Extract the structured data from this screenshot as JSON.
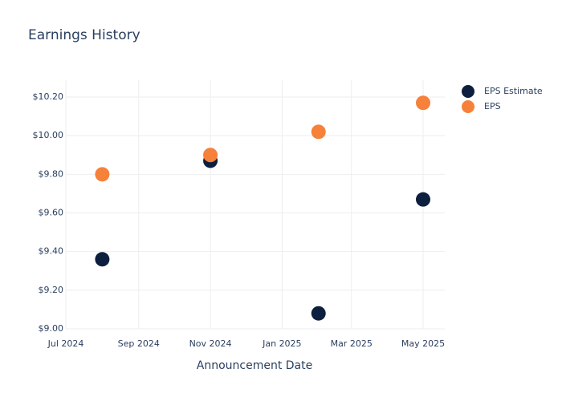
{
  "chart_data": {
    "type": "scatter",
    "title": "Earnings History",
    "x_label": "Announcement Date",
    "x": [
      "2024-08",
      "2024-11",
      "2025-02",
      "2025-05"
    ],
    "series": [
      {
        "name": "EPS Estimate",
        "color": "#0c1f3f",
        "values": [
          9.36,
          9.87,
          9.08,
          9.67
        ]
      },
      {
        "name": "EPS",
        "color": "#f5813a",
        "values": [
          9.8,
          9.9,
          10.02,
          10.17
        ]
      }
    ],
    "xlim": [
      "2024-07",
      "2025-05"
    ],
    "xticks": [
      {
        "value": "2024-07",
        "label": "Jul 2024"
      },
      {
        "value": "2024-09",
        "label": "Sep 2024"
      },
      {
        "value": "2024-11",
        "label": "Nov 2024"
      },
      {
        "value": "2025-01",
        "label": "Jan 2025"
      },
      {
        "value": "2025-03",
        "label": "Mar 2025"
      },
      {
        "value": "2025-05",
        "label": "May 2025"
      }
    ],
    "ylim": [
      9.0,
      10.2
    ],
    "yticks": [
      {
        "value": 9.0,
        "label": "$9.00"
      },
      {
        "value": 9.2,
        "label": "$9.20"
      },
      {
        "value": 9.4,
        "label": "$9.40"
      },
      {
        "value": 9.6,
        "label": "$9.60"
      },
      {
        "value": 9.8,
        "label": "$9.80"
      },
      {
        "value": 10.0,
        "label": "$10.00"
      },
      {
        "value": 10.2,
        "label": "$10.20"
      }
    ],
    "grid": true,
    "legend": "right"
  }
}
